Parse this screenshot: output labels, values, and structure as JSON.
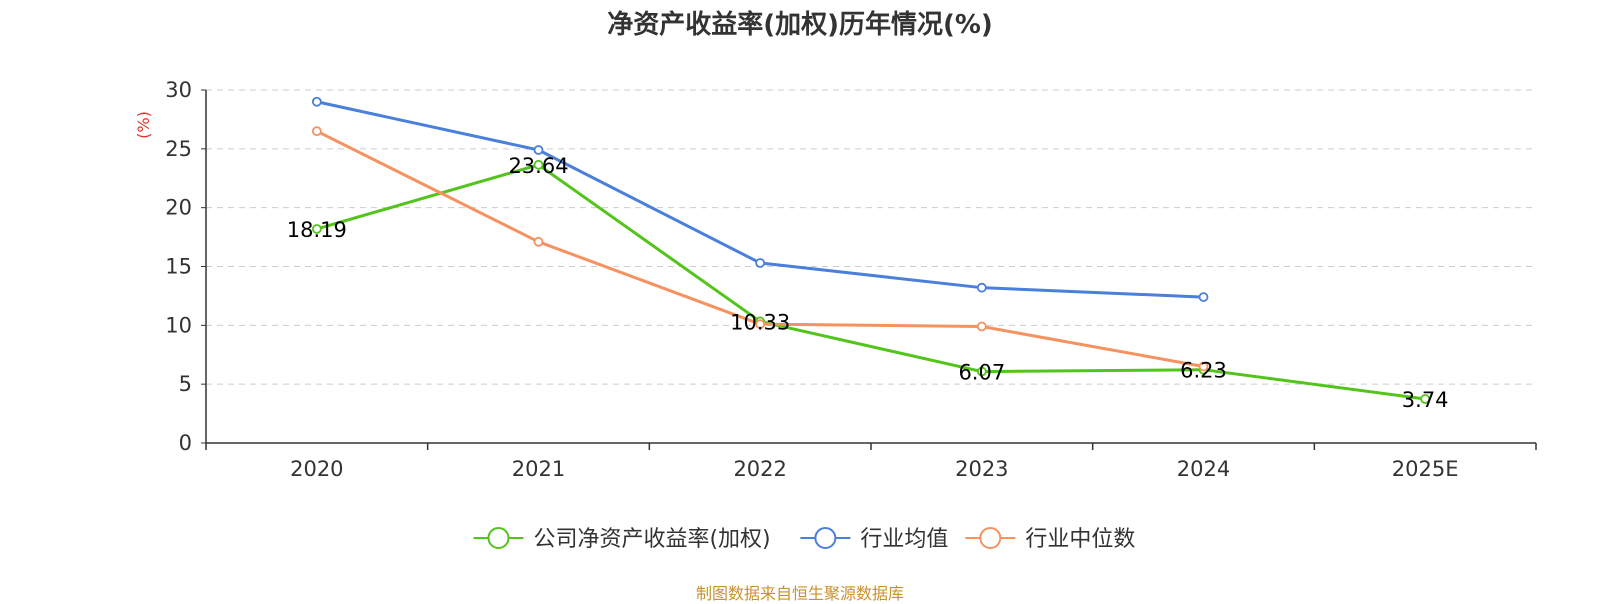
{
  "title": "净资产收益率(加权)历年情况(%)",
  "source": "制图数据来自恒生聚源数据库",
  "colors": {
    "company": "#52c41a",
    "industry_avg": "#4a7fdc",
    "industry_median": "#f5925f",
    "source_text": "#c8912e",
    "yunit": "#e8312d",
    "axis": "#333333",
    "grid": "#cccccc"
  },
  "chart_data": {
    "type": "line",
    "title": "净资产收益率(加权)历年情况(%)",
    "categories": [
      "2020",
      "2021",
      "2022",
      "2023",
      "2024",
      "2025E"
    ],
    "ylabel": "(%)",
    "xlabel": "",
    "ylim": [
      0,
      30
    ],
    "yticks": [
      0,
      5,
      10,
      15,
      20,
      25,
      30
    ],
    "grid": true,
    "legend_position": "bottom-center",
    "series": [
      {
        "name": "公司净资产收益率(加权)",
        "key": "company",
        "values": [
          18.19,
          23.64,
          10.33,
          6.07,
          6.23,
          3.74
        ],
        "show_labels": true
      },
      {
        "name": "行业均值",
        "key": "industry_avg",
        "values": [
          29.0,
          24.9,
          15.3,
          13.2,
          12.4,
          null
        ],
        "show_labels": false
      },
      {
        "name": "行业中位数",
        "key": "industry_median",
        "values": [
          26.5,
          17.1,
          10.1,
          9.9,
          6.5,
          null
        ],
        "show_labels": false
      }
    ]
  }
}
